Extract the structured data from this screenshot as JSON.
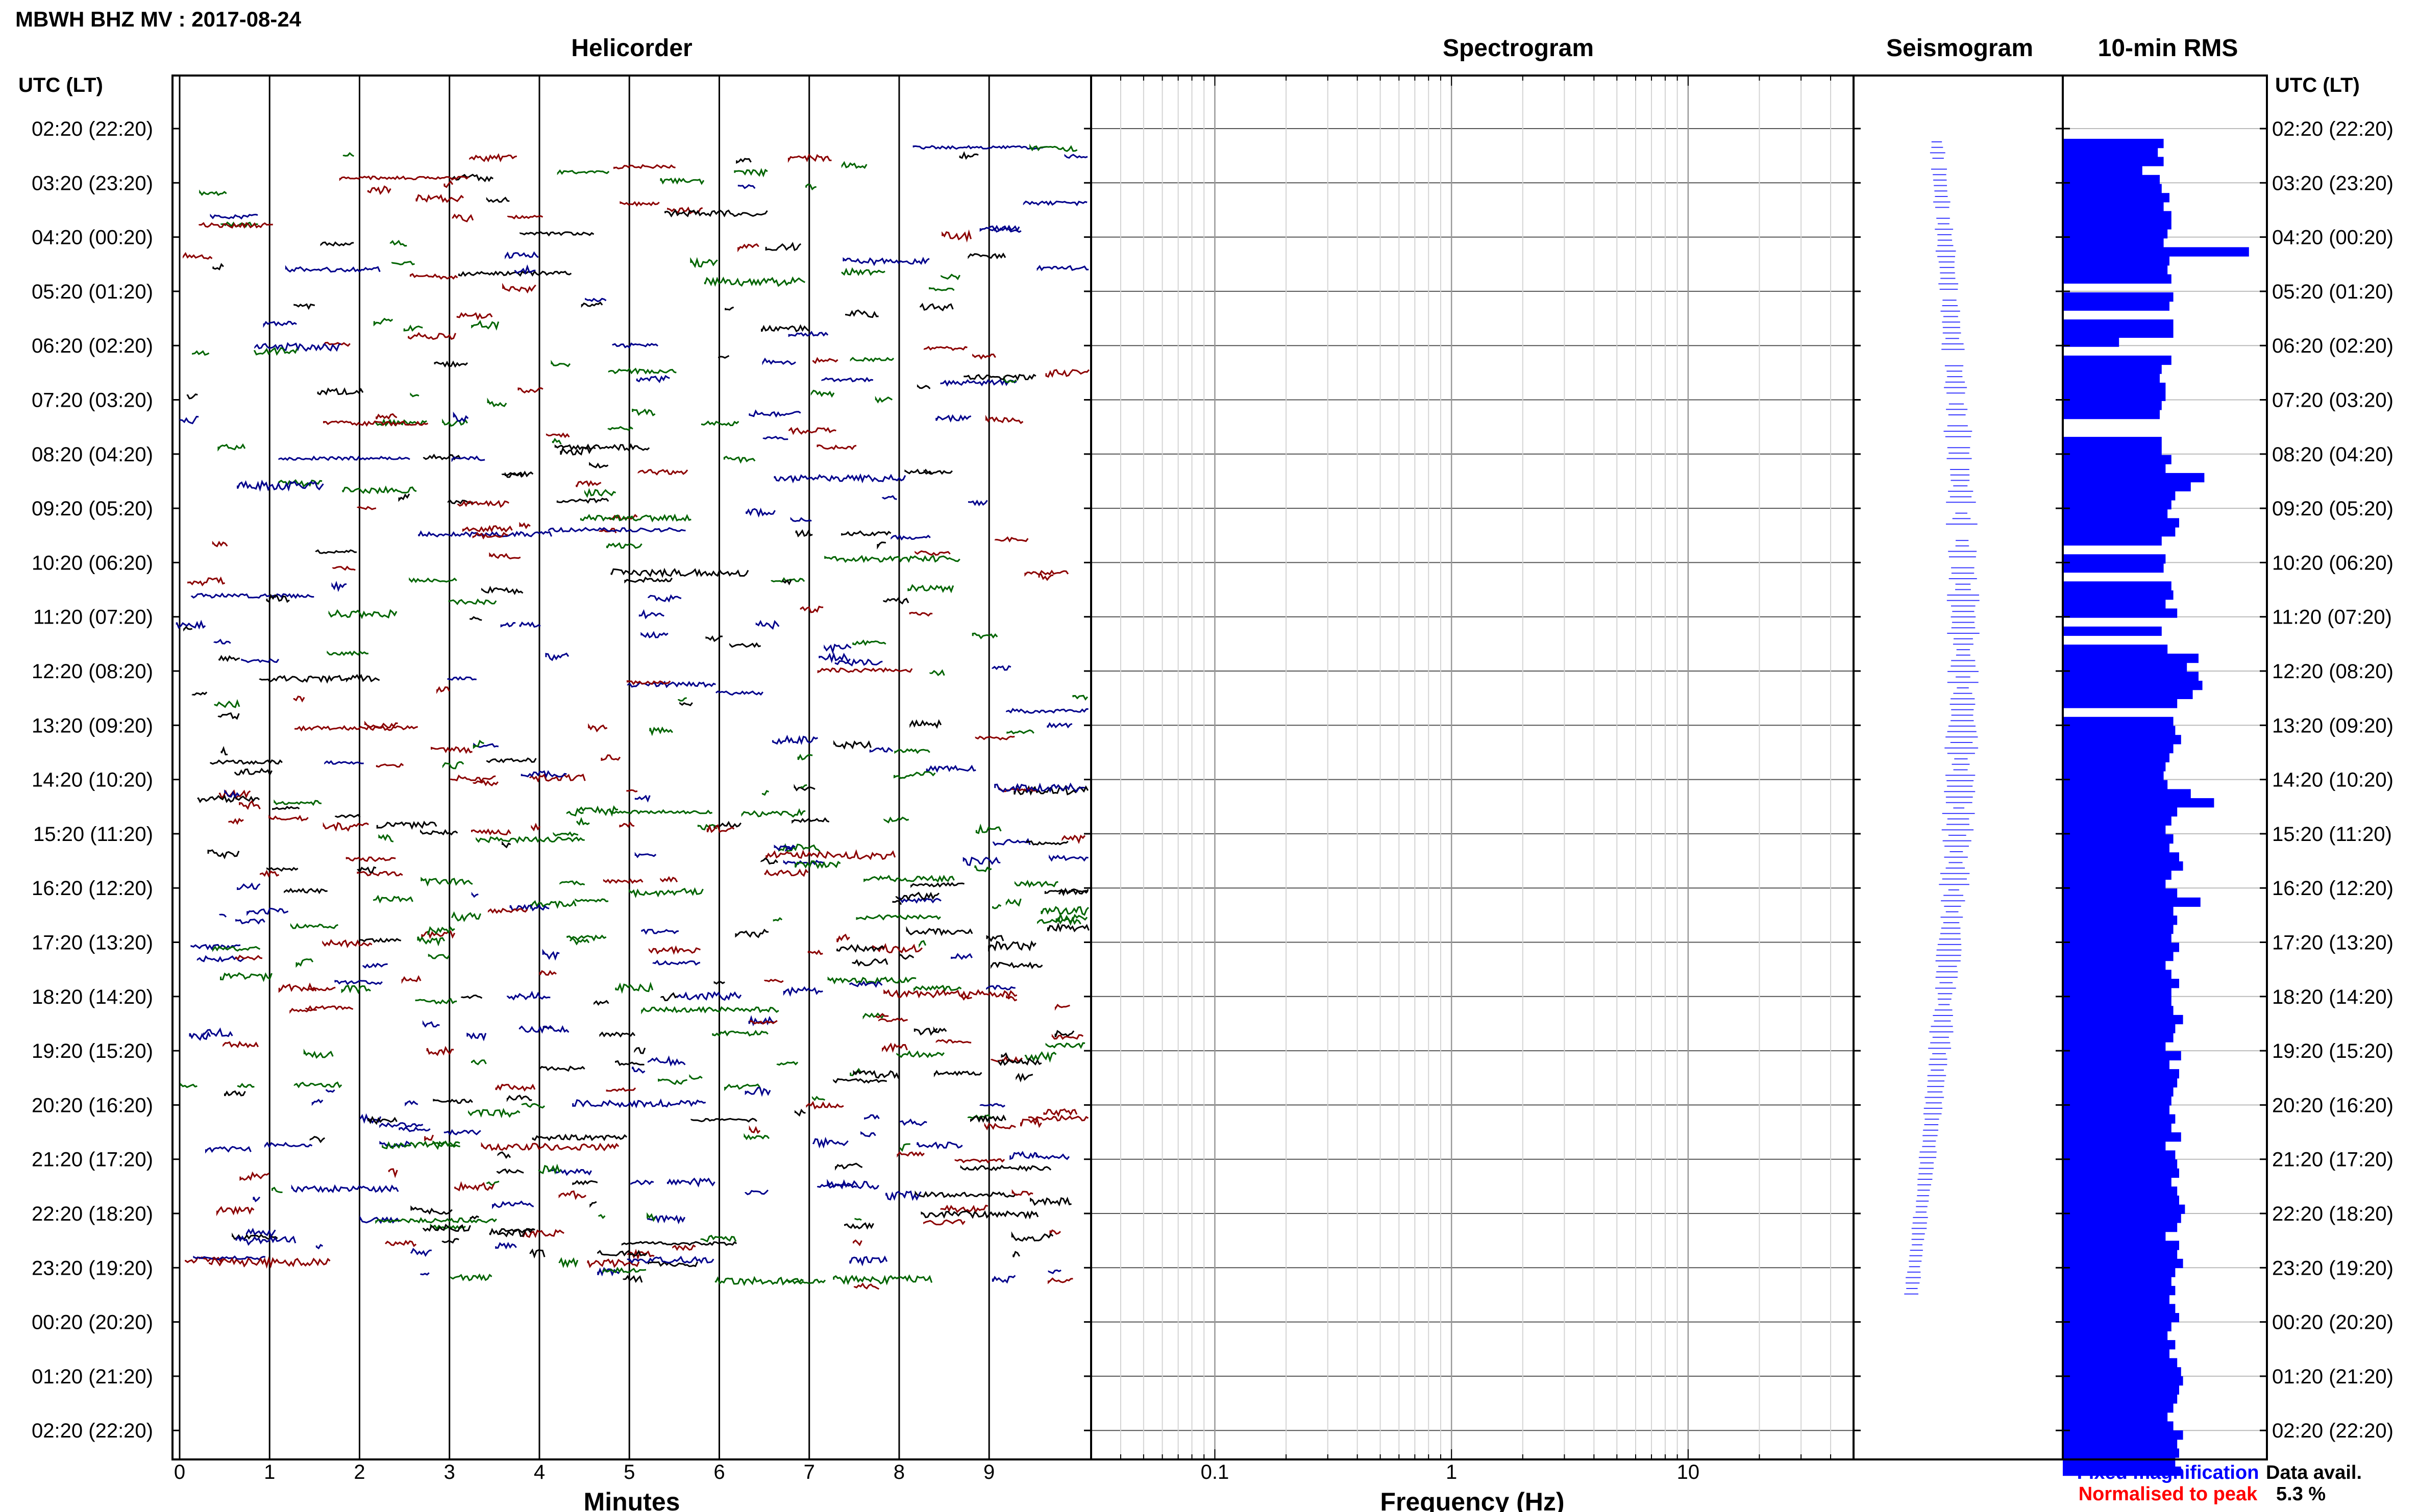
{
  "header": {
    "station_title": "MBWH BHZ MV : 2017-08-24",
    "utc_label_left": "UTC (LT)",
    "utc_label_right": "UTC (LT)"
  },
  "panels": {
    "helicorder": {
      "title": "Helicorder",
      "xlabel": "Minutes"
    },
    "spectrogram": {
      "title": "Spectrogram",
      "xlabel": "Frequency (Hz)"
    },
    "seismogram": {
      "title": "Seismogram"
    },
    "rms": {
      "title": "10-min RMS"
    }
  },
  "legend": {
    "fixed": "Fixed magnification",
    "normalised": "Normalised to peak",
    "data_avail_label": "Data avail.",
    "data_avail_value": "5.3 %"
  },
  "colors": {
    "trace_colors": [
      "#00008b",
      "#006400",
      "#8b0000",
      "#000000"
    ],
    "rms_bar": "#0000ff",
    "seismogram_trace": "#3a3aff",
    "fixed_label": "#0000ff",
    "normalised_label": "#ff0000"
  },
  "chart_data": {
    "type": "helicorder",
    "time_labels": [
      "02:20 (22:20)",
      "03:20 (23:20)",
      "04:20 (00:20)",
      "05:20 (01:20)",
      "06:20 (02:20)",
      "07:20 (03:20)",
      "08:20 (04:20)",
      "09:20 (05:20)",
      "10:20 (06:20)",
      "11:20 (07:20)",
      "12:20 (08:20)",
      "13:20 (09:20)",
      "14:20 (10:20)",
      "15:20 (11:20)",
      "16:20 (12:20)",
      "17:20 (13:20)",
      "18:20 (14:20)",
      "19:20 (15:20)",
      "20:20 (16:20)",
      "21:20 (17:20)",
      "22:20 (18:20)",
      "23:20 (19:20)",
      "00:20 (20:20)",
      "01:20 (21:20)",
      "02:20 (22:20)"
    ],
    "helicorder_x": {
      "ticks": [
        0,
        1,
        2,
        3,
        4,
        5,
        6,
        7,
        8,
        9
      ],
      "xlim": [
        0,
        10.2
      ]
    },
    "spectrogram_x": {
      "scale": "log",
      "xlim": [
        0.03,
        50
      ],
      "tick_values": [
        0.1,
        1,
        10
      ],
      "tick_labels": [
        "0.1",
        "1",
        "10"
      ]
    },
    "rms_values": [
      0.52,
      0.49,
      0.52,
      0.41,
      0.5,
      0.51,
      0.55,
      0.52,
      0.56,
      0.56,
      0.54,
      0.52,
      0.96,
      0.55,
      0.54,
      0.56,
      0,
      0.57,
      0.55,
      0,
      0.57,
      0.57,
      0.29,
      0,
      0.56,
      0.51,
      0.5,
      0.53,
      0.53,
      0.51,
      0.5,
      0,
      0,
      0.51,
      0.51,
      0.56,
      0.53,
      0.73,
      0.66,
      0.58,
      0.56,
      0.54,
      0.6,
      0.58,
      0.51,
      0,
      0.53,
      0.52,
      0,
      0.56,
      0.57,
      0.53,
      0.59,
      0,
      0.51,
      0,
      0.54,
      0.7,
      0.64,
      0.7,
      0.72,
      0.67,
      0.59,
      0,
      0.57,
      0.58,
      0.61,
      0.57,
      0.55,
      0.53,
      0.52,
      0.54,
      0.66,
      0.78,
      0.59,
      0.56,
      0.53,
      0.57,
      0.55,
      0.6,
      0.62,
      0.56,
      0.53,
      0.59,
      0.71,
      0.57,
      0.59,
      0.57,
      0.56,
      0.6,
      0.57,
      0.53,
      0.56,
      0.6,
      0.56,
      0.56,
      0.57,
      0.62,
      0.58,
      0.57,
      0.53,
      0.61,
      0.55,
      0.6,
      0.59,
      0.57,
      0.56,
      0.55,
      0.58,
      0.56,
      0.61,
      0.53,
      0.58,
      0.59,
      0.6,
      0.56,
      0.59,
      0.6,
      0.63,
      0.61,
      0.59,
      0.53,
      0.6,
      0.59,
      0.62,
      0.58,
      0.56,
      0.58,
      0.55,
      0.58,
      0.6,
      0.56,
      0.54,
      0.58,
      0.55,
      0.59,
      0.61,
      0.62,
      0.6,
      0.59,
      0.57,
      0.54,
      0.57,
      0.62,
      0.59,
      0.6,
      0.58,
      0.61
    ]
  }
}
